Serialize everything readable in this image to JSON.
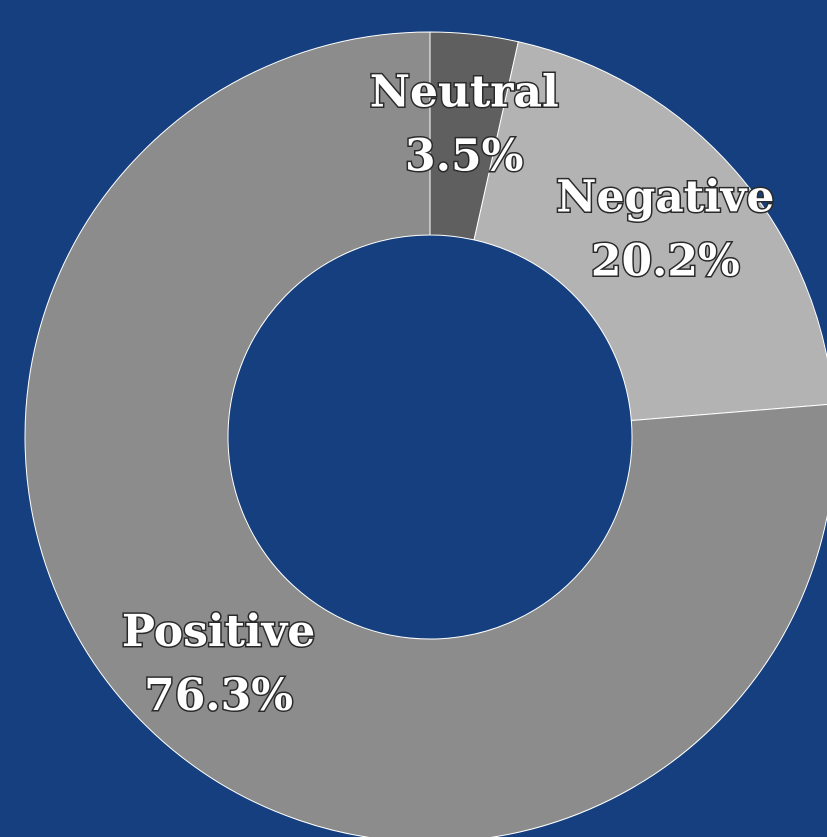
{
  "chart_data": {
    "type": "donut",
    "categories": [
      "Neutral",
      "Negative",
      "Positive"
    ],
    "values": [
      3.5,
      20.2,
      76.3
    ],
    "value_labels": [
      "3.5%",
      "20.2%",
      "76.3%"
    ],
    "colors": [
      "#5f5f5f",
      "#b3b3b3",
      "#8c8c8c"
    ]
  }
}
